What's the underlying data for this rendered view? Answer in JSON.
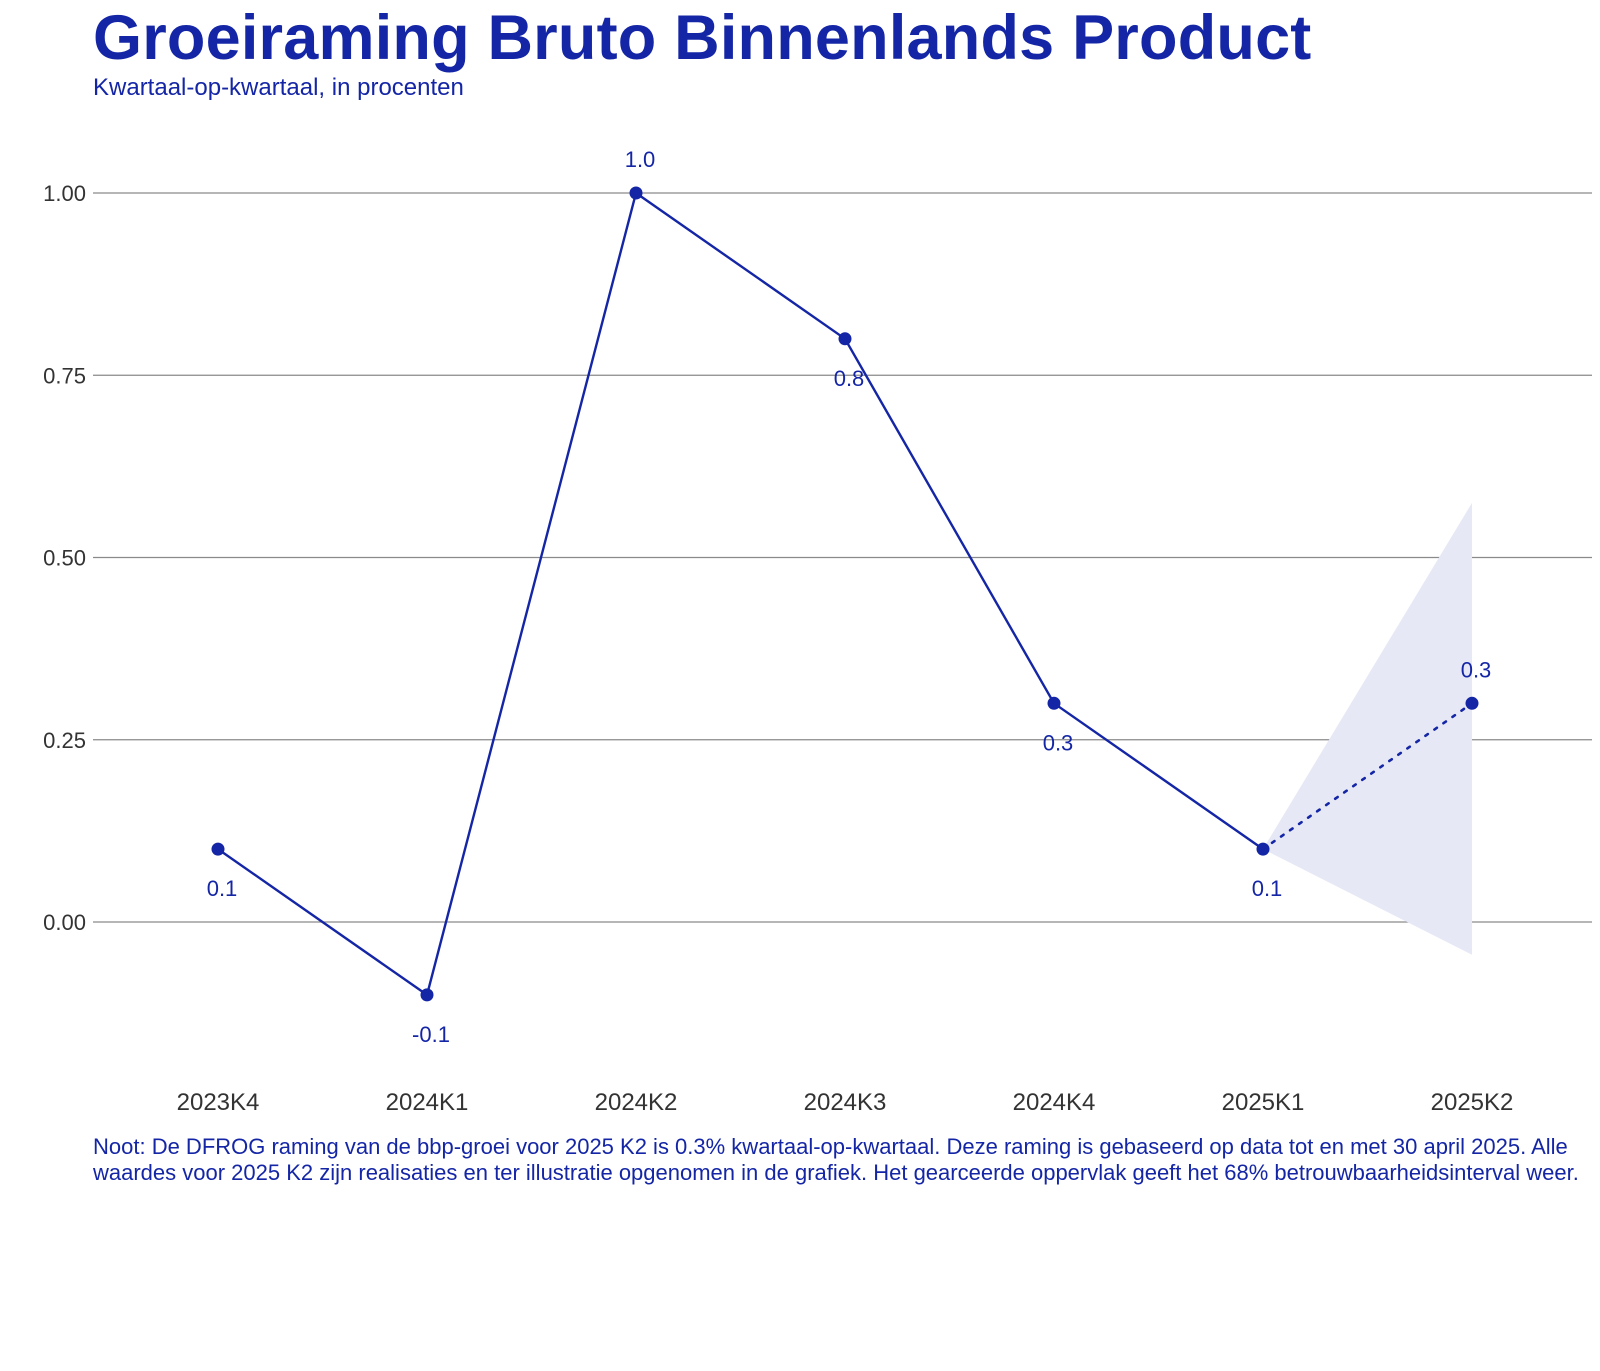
{
  "header": {
    "title": "Groeiraming Bruto Binnenlands Product",
    "subtitle": "Kwartaal-op-kwartaal, in procenten"
  },
  "note": "Noot: De DFROG raming van de bbp-groei voor 2025 K2 is 0.3% kwartaal-op-kwartaal. Deze raming is gebaseerd op data tot en met 30 april 2025. Alle waardes voor 2025 K2 zijn realisaties en ter illustratie opgenomen in de grafiek. Het gearceerde oppervlak geeft het 68% betrouwbaarheidsinterval weer.",
  "chart_data": {
    "type": "line",
    "categories": [
      "2023K4",
      "2024K1",
      "2024K2",
      "2024K3",
      "2024K4",
      "2025K1",
      "2025K2"
    ],
    "values": [
      0.1,
      -0.1,
      1.0,
      0.8,
      0.3,
      0.1,
      0.3
    ],
    "data_labels": [
      "0.1",
      "-0.1",
      "1.0",
      "0.8",
      "0.3",
      "0.1",
      "0.3"
    ],
    "label_position": [
      "below",
      "below",
      "above",
      "below",
      "below",
      "below",
      "above"
    ],
    "forecast_category": "2025K2",
    "confidence_band": {
      "level": "68%",
      "from": {
        "category": "2025K1",
        "lower": 0.1,
        "upper": 0.1
      },
      "to": {
        "category": "2025K2",
        "lower": -0.045,
        "upper": 0.575
      }
    },
    "yticks": [
      0.0,
      0.25,
      0.5,
      0.75,
      1.0
    ],
    "ytick_labels": [
      "0.00",
      "0.25",
      "0.50",
      "0.75",
      "1.00"
    ],
    "ylim": [
      -0.2,
      1.1
    ],
    "grid": "horizontal",
    "xlabel": "",
    "ylabel": "",
    "colors": {
      "line": "#1426a6",
      "band": "#e6e8f6",
      "grid": "#8a8a8a",
      "text": "#333333"
    }
  }
}
